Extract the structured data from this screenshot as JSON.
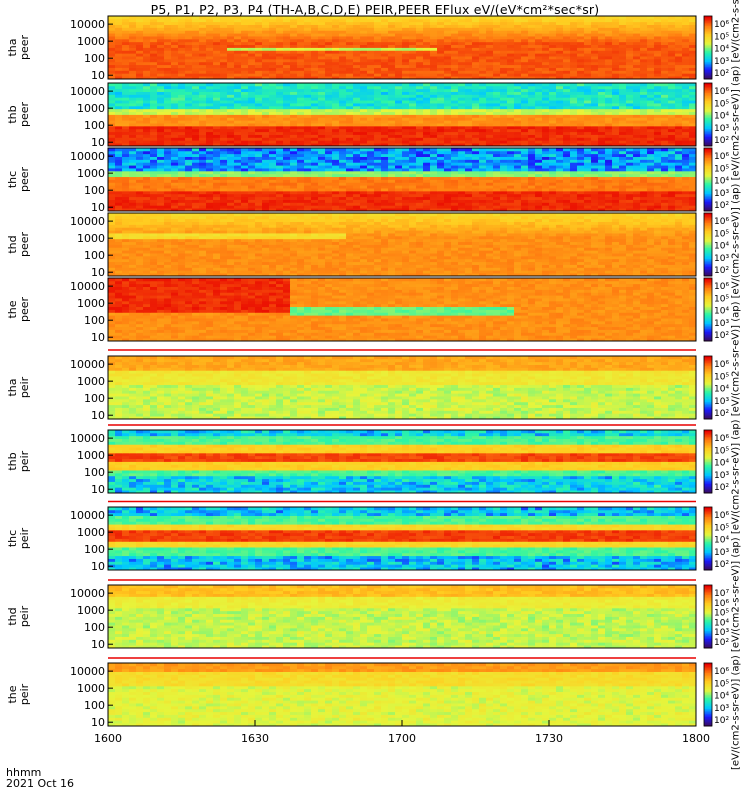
{
  "title": "P5, P1, P2, P3, P4 (TH-A,B,C,D,E) PEIR,PEER EFlux eV/(eV*cm²*sec*sr)",
  "side_caption": "[eV/(cm2-s-sr-eV)] (ap) [eV/(cm2-s-sr-eV)] (ap) [eV/(cm2-s-sr-eV)] (ap) [eV/(cm2-s-sr-eV)] (ap) [eV/(cm2-s-sr-eV)] (ap) [eV/(cm2-s-sr-eV)] (ap) [eV/(cm2-s-sr-eV)] (ap)",
  "footer": {
    "time_label": "hhmm",
    "date_label": "2021 Oct 16"
  },
  "chart_data": {
    "type": "heatmap",
    "x_ticks": [
      "1600",
      "1630",
      "1700",
      "1730",
      "1800"
    ],
    "x_range": [
      "16:00",
      "18:00"
    ],
    "y_scale": "log",
    "y_ticks": [
      "10",
      "100",
      "1000",
      "10000"
    ],
    "colorscale": [
      "#3b0a5e",
      "#1a1aff",
      "#00c8ff",
      "#2cf5a6",
      "#e6f53c",
      "#ffcc20",
      "#ff7a10",
      "#e80000"
    ],
    "panels": [
      {
        "label_top": "tha",
        "label_bottom": "peer",
        "y_range": [
          6,
          30000
        ],
        "cbar_ticks": [
          "10⁶",
          "10⁵",
          "10⁴",
          "10³",
          "10²"
        ]
      },
      {
        "label_top": "thb",
        "label_bottom": "peer",
        "y_range": [
          6,
          30000
        ],
        "cbar_ticks": [
          "10⁶",
          "10⁵",
          "10⁴",
          "10³",
          "10²"
        ]
      },
      {
        "label_top": "thc",
        "label_bottom": "peer",
        "y_range": [
          6,
          30000
        ],
        "cbar_ticks": [
          "10⁶",
          "10⁵",
          "10⁴",
          "10³",
          "10²"
        ]
      },
      {
        "label_top": "thd",
        "label_bottom": "peer",
        "y_range": [
          6,
          30000
        ],
        "cbar_ticks": [
          "10⁶",
          "10⁵",
          "10⁴",
          "10³",
          "10²"
        ]
      },
      {
        "label_top": "the",
        "label_bottom": "peer",
        "y_range": [
          6,
          30000
        ],
        "cbar_ticks": [
          "10⁶",
          "10⁵",
          "10⁴",
          "10³",
          "10²"
        ]
      },
      {
        "label_top": "tha",
        "label_bottom": "peir",
        "y_range": [
          6,
          30000
        ],
        "cbar_ticks": [
          "10⁶",
          "10⁵",
          "10⁴",
          "10³",
          "10²"
        ]
      },
      {
        "label_top": "thb",
        "label_bottom": "peir",
        "y_range": [
          6,
          30000
        ],
        "cbar_ticks": [
          "10⁶",
          "10⁵",
          "10⁴",
          "10³",
          "10²"
        ]
      },
      {
        "label_top": "thc",
        "label_bottom": "peir",
        "y_range": [
          6,
          30000
        ],
        "cbar_ticks": [
          "10⁶",
          "10⁵",
          "10⁴",
          "10³",
          "10²"
        ]
      },
      {
        "label_top": "thd",
        "label_bottom": "peir",
        "y_range": [
          6,
          30000
        ],
        "cbar_ticks": [
          "10⁷",
          "10⁶",
          "10⁵",
          "10⁴",
          "10³",
          "10²"
        ]
      },
      {
        "label_top": "the",
        "label_bottom": "peir",
        "y_range": [
          6,
          30000
        ],
        "cbar_ticks": [
          "10⁶",
          "10⁵",
          "10⁴",
          "10³",
          "10²"
        ]
      }
    ]
  }
}
